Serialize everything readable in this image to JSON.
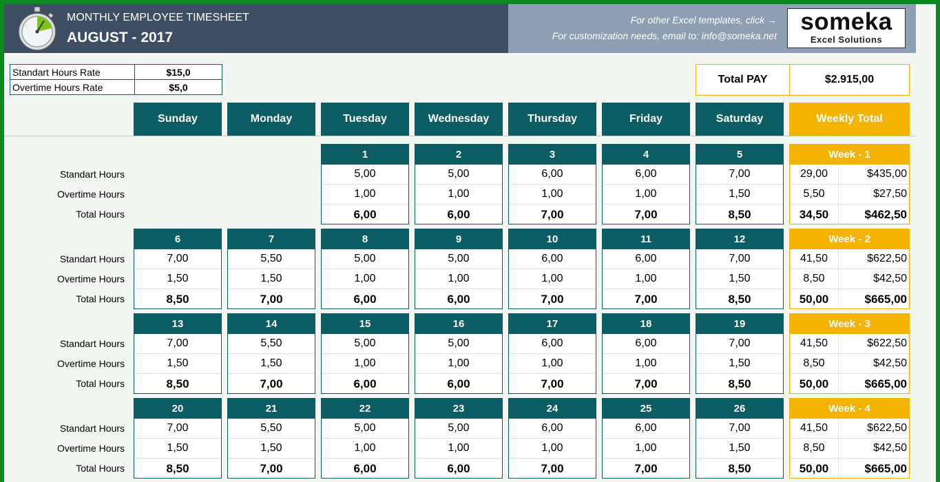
{
  "header": {
    "app_title": "MONTHLY EMPLOYEE TIMESHEET",
    "month": "AUGUST - 2017",
    "promo_line1": "For other Excel templates, click →",
    "promo_line2": "For customization needs, email to: info@someka.net",
    "logo_word": "someka",
    "logo_sub": "Excel Solutions"
  },
  "rates": [
    {
      "label": "Standart Hours Rate",
      "value": "$15,0"
    },
    {
      "label": "Overtime Hours Rate",
      "value": "$5,0"
    }
  ],
  "total_pay": {
    "label": "Total PAY",
    "value": "$2.915,00"
  },
  "day_headers": [
    "Sunday",
    "Monday",
    "Tuesday",
    "Wednesday",
    "Thursday",
    "Friday",
    "Saturday"
  ],
  "weekly_total_header": "Weekly Total",
  "row_labels": [
    "Standart Hours",
    "Overtime Hours",
    "Total Hours"
  ],
  "weeks": [
    {
      "label": "Week - 1",
      "summary": [
        [
          "29,00",
          "$435,00"
        ],
        [
          "5,50",
          "$27,50"
        ],
        [
          "34,50",
          "$462,50"
        ]
      ],
      "days": [
        null,
        null,
        {
          "num": "1",
          "std": "5,00",
          "ot": "1,00",
          "total": "6,00"
        },
        {
          "num": "2",
          "std": "5,00",
          "ot": "1,00",
          "total": "6,00"
        },
        {
          "num": "3",
          "std": "6,00",
          "ot": "1,00",
          "total": "7,00"
        },
        {
          "num": "4",
          "std": "6,00",
          "ot": "1,00",
          "total": "7,00"
        },
        {
          "num": "5",
          "std": "7,00",
          "ot": "1,50",
          "total": "8,50"
        }
      ]
    },
    {
      "label": "Week - 2",
      "summary": [
        [
          "41,50",
          "$622,50"
        ],
        [
          "8,50",
          "$42,50"
        ],
        [
          "50,00",
          "$665,00"
        ]
      ],
      "days": [
        {
          "num": "6",
          "std": "7,00",
          "ot": "1,50",
          "total": "8,50"
        },
        {
          "num": "7",
          "std": "5,50",
          "ot": "1,50",
          "total": "7,00"
        },
        {
          "num": "8",
          "std": "5,00",
          "ot": "1,00",
          "total": "6,00"
        },
        {
          "num": "9",
          "std": "5,00",
          "ot": "1,00",
          "total": "6,00"
        },
        {
          "num": "10",
          "std": "6,00",
          "ot": "1,00",
          "total": "7,00"
        },
        {
          "num": "11",
          "std": "6,00",
          "ot": "1,00",
          "total": "7,00"
        },
        {
          "num": "12",
          "std": "7,00",
          "ot": "1,50",
          "total": "8,50"
        }
      ]
    },
    {
      "label": "Week - 3",
      "summary": [
        [
          "41,50",
          "$622,50"
        ],
        [
          "8,50",
          "$42,50"
        ],
        [
          "50,00",
          "$665,00"
        ]
      ],
      "days": [
        {
          "num": "13",
          "std": "7,00",
          "ot": "1,50",
          "total": "8,50"
        },
        {
          "num": "14",
          "std": "5,50",
          "ot": "1,50",
          "total": "7,00"
        },
        {
          "num": "15",
          "std": "5,00",
          "ot": "1,00",
          "total": "6,00"
        },
        {
          "num": "16",
          "std": "5,00",
          "ot": "1,00",
          "total": "6,00"
        },
        {
          "num": "17",
          "std": "6,00",
          "ot": "1,00",
          "total": "7,00"
        },
        {
          "num": "18",
          "std": "6,00",
          "ot": "1,00",
          "total": "7,00"
        },
        {
          "num": "19",
          "std": "7,00",
          "ot": "1,50",
          "total": "8,50"
        }
      ]
    },
    {
      "label": "Week - 4",
      "summary": [
        [
          "41,50",
          "$622,50"
        ],
        [
          "8,50",
          "$42,50"
        ],
        [
          "50,00",
          "$665,00"
        ]
      ],
      "days": [
        {
          "num": "20",
          "std": "7,00",
          "ot": "1,50",
          "total": "8,50"
        },
        {
          "num": "21",
          "std": "5,50",
          "ot": "1,50",
          "total": "7,00"
        },
        {
          "num": "22",
          "std": "5,00",
          "ot": "1,00",
          "total": "6,00"
        },
        {
          "num": "23",
          "std": "5,00",
          "ot": "1,00",
          "total": "6,00"
        },
        {
          "num": "24",
          "std": "6,00",
          "ot": "1,00",
          "total": "7,00"
        },
        {
          "num": "25",
          "std": "6,00",
          "ot": "1,00",
          "total": "7,00"
        },
        {
          "num": "26",
          "std": "7,00",
          "ot": "1,50",
          "total": "8,50"
        }
      ]
    }
  ],
  "colors": {
    "teal": "#0c5d63",
    "amber": "#f3b300",
    "header_dark": "#3d4d63",
    "header_light": "#8e9eb3",
    "frame_green": "#0a8a1e"
  },
  "icons": {
    "stopwatch": "stopwatch-icon"
  }
}
